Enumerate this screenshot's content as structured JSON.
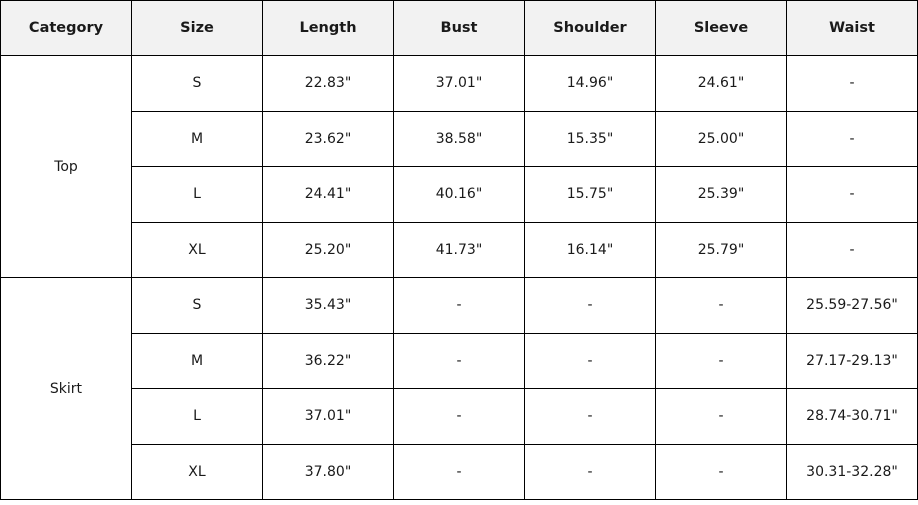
{
  "table": {
    "headers": [
      "Category",
      "Size",
      "Length",
      "Bust",
      "Shoulder",
      "Sleeve",
      "Waist"
    ],
    "groups": [
      {
        "category": "Top",
        "rows": [
          [
            "S",
            "22.83\"",
            "37.01\"",
            "14.96\"",
            "24.61\"",
            "-"
          ],
          [
            "M",
            "23.62\"",
            "38.58\"",
            "15.35\"",
            "25.00\"",
            "-"
          ],
          [
            "L",
            "24.41\"",
            "40.16\"",
            "15.75\"",
            "25.39\"",
            "-"
          ],
          [
            "XL",
            "25.20\"",
            "41.73\"",
            "16.14\"",
            "25.79\"",
            "-"
          ]
        ]
      },
      {
        "category": "Skirt",
        "rows": [
          [
            "S",
            "35.43\"",
            "-",
            "-",
            "-",
            "25.59-27.56\""
          ],
          [
            "M",
            "36.22\"",
            "-",
            "-",
            "-",
            "27.17-29.13\""
          ],
          [
            "L",
            "37.01\"",
            "-",
            "-",
            "-",
            "28.74-30.71\""
          ],
          [
            "XL",
            "37.80\"",
            "-",
            "-",
            "-",
            "30.31-32.28\""
          ]
        ]
      }
    ]
  }
}
